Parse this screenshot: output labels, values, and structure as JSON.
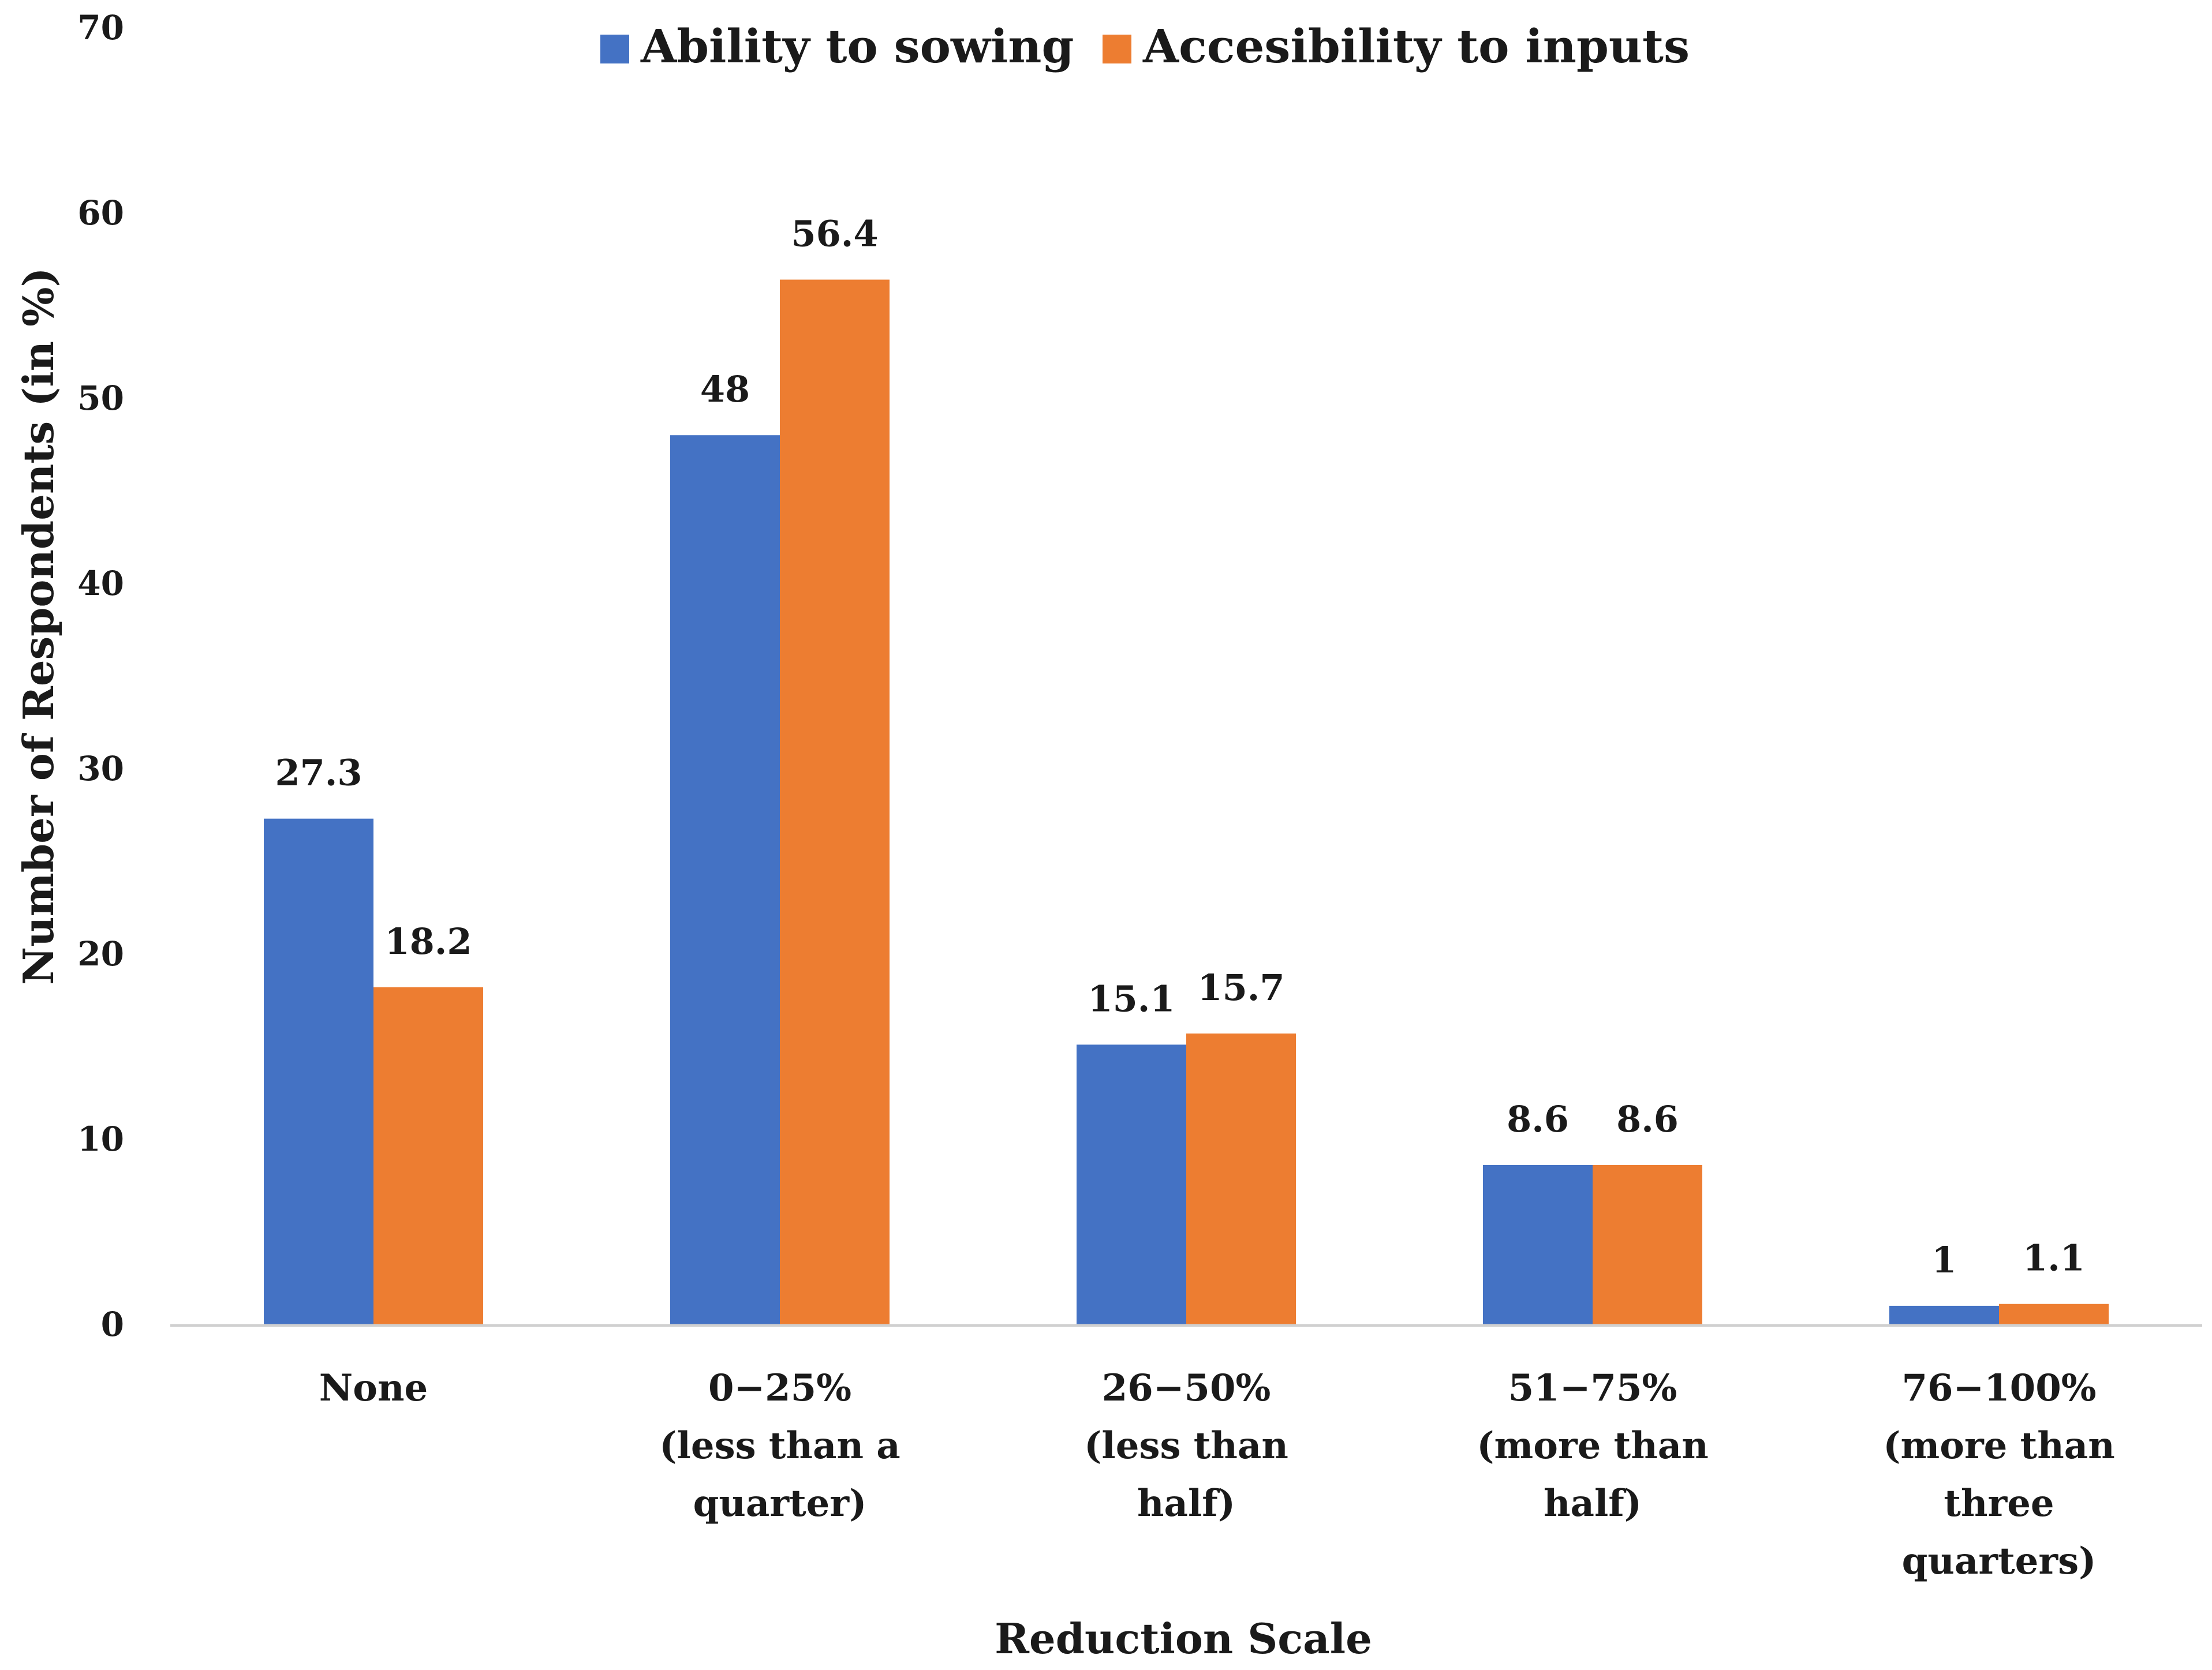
{
  "chart_data": {
    "type": "bar",
    "title": "",
    "xlabel": "Reduction Scale",
    "ylabel": "Number of Respondents (in %)",
    "ylim": [
      0,
      70
    ],
    "yticks": [
      0,
      10,
      20,
      30,
      40,
      50,
      60,
      70
    ],
    "grid": false,
    "legend_position": "top-center",
    "categories": [
      [
        "None"
      ],
      [
        "0−25%",
        "(less than a",
        "quarter)"
      ],
      [
        "26−50%",
        "(less than",
        "half)"
      ],
      [
        "51−75%",
        "(more than",
        "half)"
      ],
      [
        "76−100%",
        "(more than",
        "three",
        "quarters)"
      ]
    ],
    "series": [
      {
        "name": "Ability to sowing",
        "color": "#4472C4",
        "values": [
          27.3,
          48,
          15.1,
          8.6,
          1
        ],
        "labels": [
          "27.3",
          "48",
          "15.1",
          "8.6",
          "1"
        ]
      },
      {
        "name": "Accesibility to inputs",
        "color": "#ED7D31",
        "values": [
          18.2,
          56.4,
          15.7,
          8.6,
          1.1
        ],
        "labels": [
          "18.2",
          "56.4",
          "15.7",
          "8.6",
          "1.1"
        ]
      }
    ]
  }
}
